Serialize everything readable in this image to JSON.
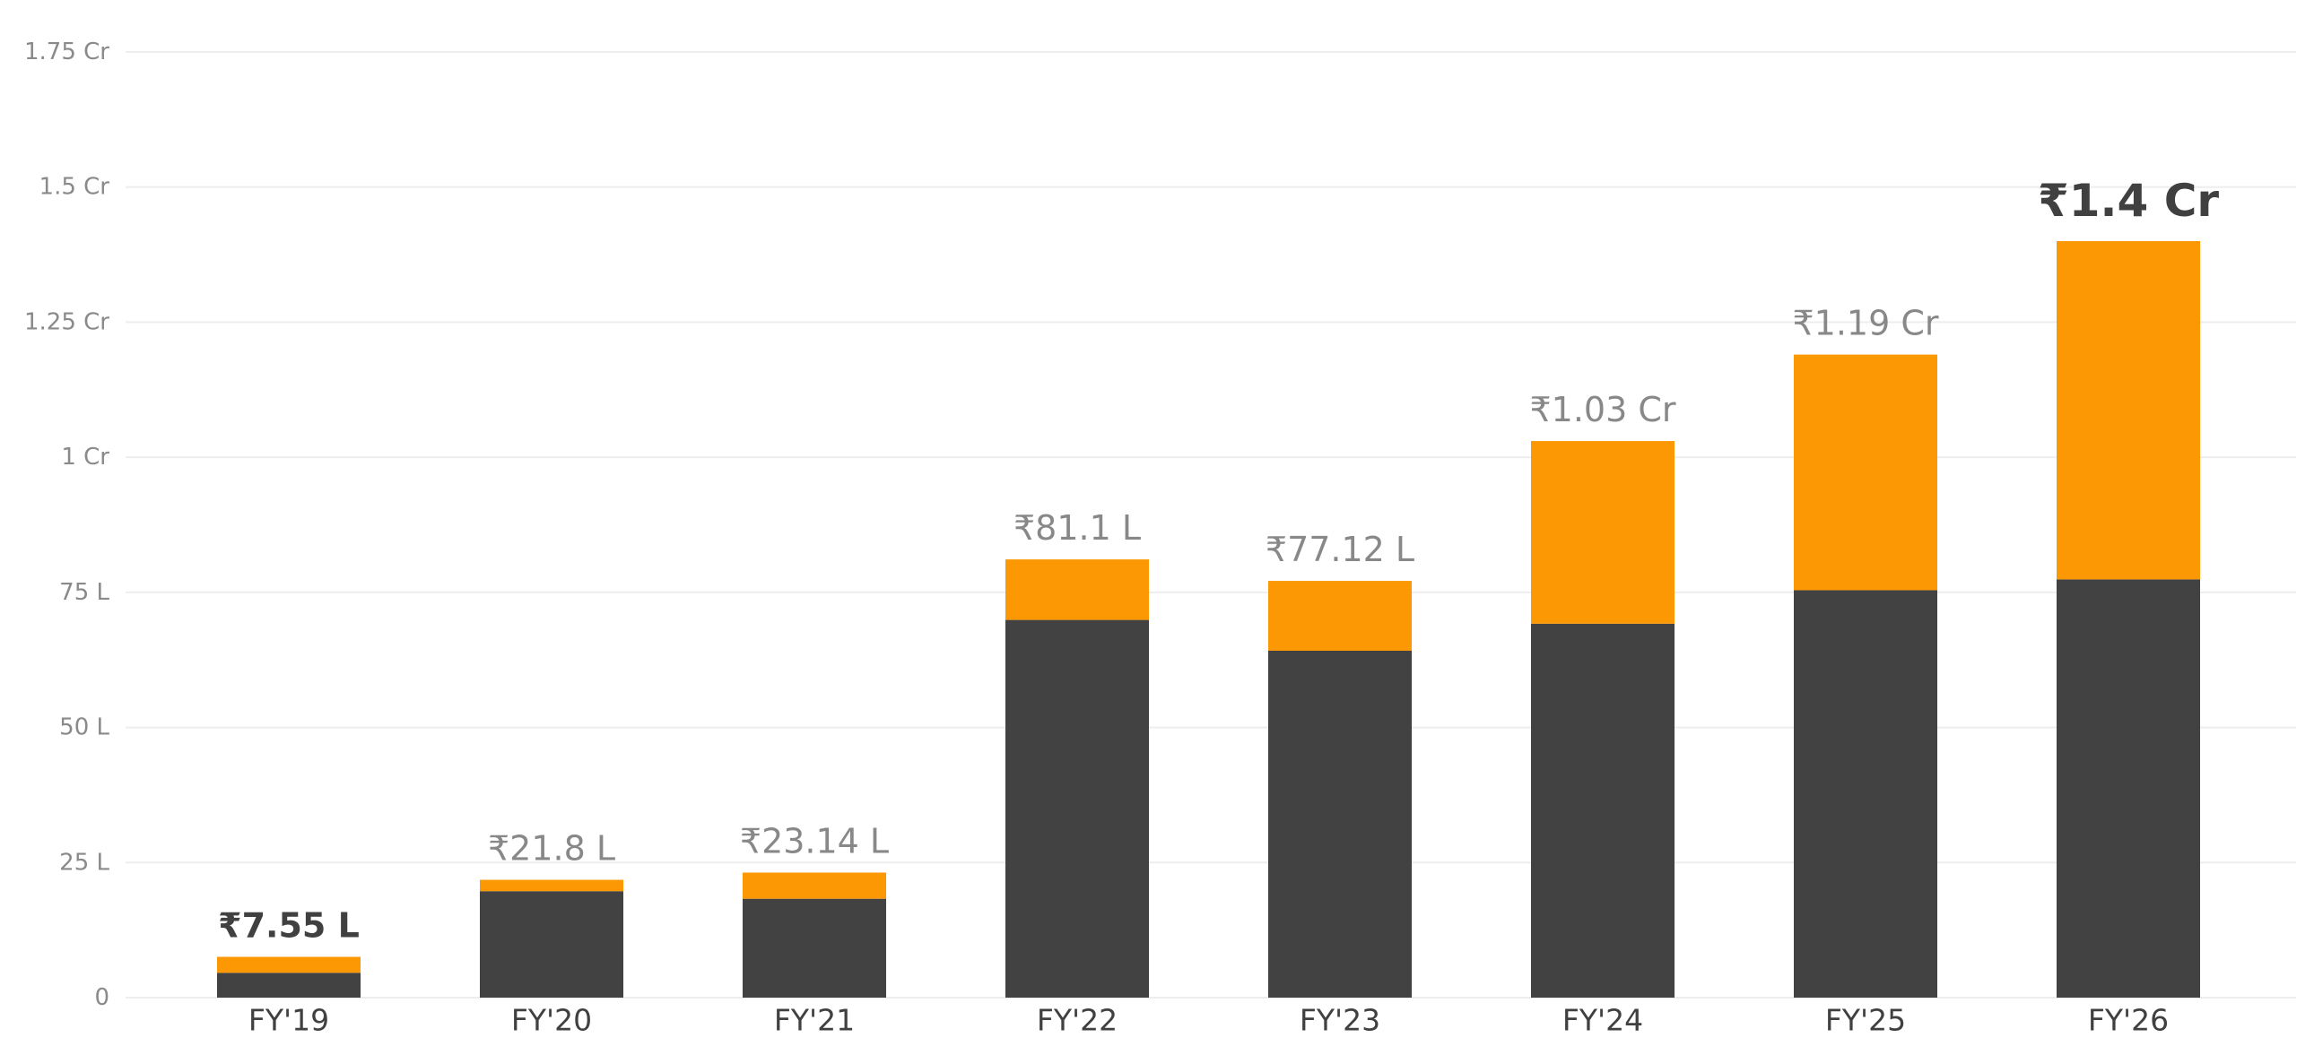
{
  "chart_data": {
    "type": "bar",
    "stacked": true,
    "categories": [
      "FY'19",
      "FY'20",
      "FY'21",
      "FY'22",
      "FY'23",
      "FY'24",
      "FY'25",
      "FY'26"
    ],
    "series": [
      {
        "values": [
          4.6,
          19.7,
          18.3,
          69.9,
          64.2,
          69.2,
          75.4,
          77.4
        ]
      },
      {
        "values": [
          2.95,
          2.1,
          4.84,
          11.2,
          12.92,
          33.8,
          43.6,
          62.6
        ]
      }
    ],
    "totals": [
      7.55,
      21.8,
      23.14,
      81.1,
      77.12,
      103,
      119,
      140
    ],
    "total_labels": [
      "₹7.55 L",
      "₹21.8 L",
      "₹23.14 L",
      "₹81.1 L",
      "₹77.12 L",
      "₹1.03 Cr",
      "₹1.19 Cr",
      "₹1.4 Cr"
    ],
    "highlighted_labels": [
      0,
      7
    ],
    "y_ticks": [
      0,
      25,
      50,
      75,
      100,
      125,
      150,
      175
    ],
    "y_tick_labels": [
      "0",
      "25 L",
      "50 L",
      "75 L",
      "1 Cr",
      "1.25 Cr",
      "1.5 Cr",
      "1.75 Cr"
    ],
    "ylim": [
      0,
      175
    ],
    "grid": true,
    "colors": {
      "series": [
        "#424242",
        "#fb9803"
      ],
      "grid": "#eeeeee",
      "highlight_label": "#404040",
      "normal_label": "#888888"
    }
  }
}
